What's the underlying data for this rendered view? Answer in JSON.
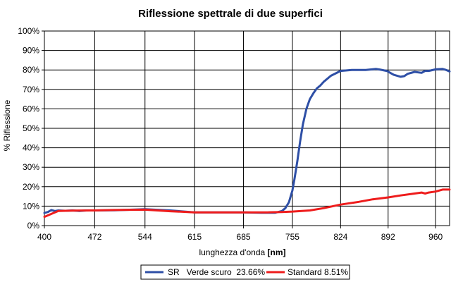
{
  "chart_data": {
    "type": "line",
    "title": "Riflessione spettrale di due superfici",
    "xlabel_text": "lunghezza d'onda ",
    "xlabel_unit": "[nm]",
    "ylabel": "% Riflessione",
    "x_ticks": [
      "400",
      "472",
      "544",
      "615",
      "685",
      "755",
      "824",
      "892",
      "960"
    ],
    "x_tick_values": [
      400,
      472,
      544,
      615,
      685,
      755,
      824,
      892,
      960
    ],
    "y_ticks": [
      "0%",
      "10%",
      "20%",
      "30%",
      "40%",
      "50%",
      "60%",
      "70%",
      "80%",
      "90%",
      "100%"
    ],
    "xlim": [
      400,
      980
    ],
    "ylim": [
      0,
      100
    ],
    "grid": true,
    "legend_position": "bottom",
    "series": [
      {
        "name": "SR   Verde scuro  23.66%",
        "color": "#2e4fa6",
        "x": [
          400,
          405,
          410,
          415,
          420,
          430,
          440,
          450,
          460,
          472,
          500,
          544,
          580,
          615,
          650,
          685,
          710,
          730,
          740,
          745,
          750,
          755,
          758,
          762,
          766,
          770,
          775,
          780,
          785,
          790,
          795,
          800,
          810,
          824,
          840,
          860,
          875,
          880,
          890,
          900,
          910,
          915,
          920,
          930,
          940,
          945,
          950,
          960,
          970,
          975,
          980
        ],
        "values": [
          6.5,
          7,
          8,
          7.5,
          7.8,
          7.6,
          7.8,
          7.5,
          7.8,
          7.8,
          7.9,
          8.4,
          7.8,
          6.8,
          6.8,
          6.8,
          6.6,
          6.6,
          7.5,
          9,
          12,
          18,
          24,
          33,
          43,
          52,
          60,
          65,
          68,
          70.5,
          72,
          74,
          77,
          79.5,
          80,
          80,
          80.5,
          80.2,
          79.5,
          77.5,
          76.5,
          76.8,
          78,
          79,
          78.5,
          79.5,
          79.5,
          80.3,
          80.5,
          80,
          79.2
        ]
      },
      {
        "name": "Standard 8.51%",
        "color": "#ee1c1c",
        "x": [
          400,
          410,
          420,
          440,
          472,
          500,
          544,
          580,
          615,
          650,
          685,
          720,
          740,
          755,
          780,
          800,
          824,
          850,
          870,
          892,
          910,
          930,
          940,
          945,
          950,
          960,
          970,
          980
        ],
        "values": [
          4.5,
          6,
          7.5,
          7.7,
          7.8,
          8,
          8.2,
          7.4,
          6.8,
          6.8,
          6.8,
          6.8,
          7,
          7.2,
          7.8,
          9,
          10.8,
          12.2,
          13.5,
          14.5,
          15.5,
          16.5,
          17,
          16.5,
          17,
          17.5,
          18.5,
          18.5
        ]
      }
    ]
  }
}
